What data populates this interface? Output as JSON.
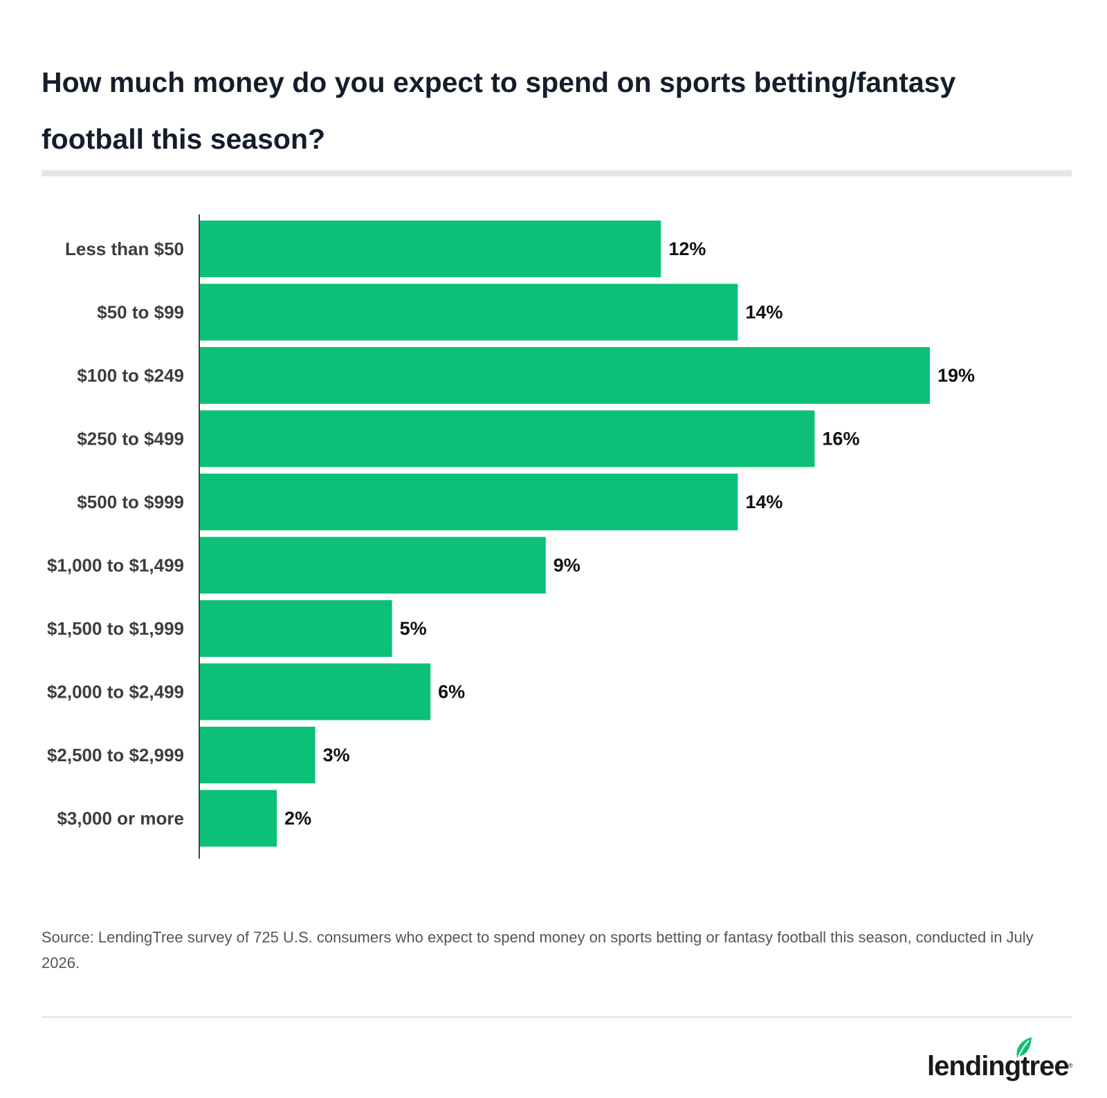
{
  "title": "How much money do you expect to spend on sports betting/fantasy football this season?",
  "source": "Source: LendingTree survey of 725 U.S. consumers who expect to spend money on sports betting or fantasy football this season, conducted in July 2026.",
  "logo": {
    "text": "lendingtree",
    "trademark": "®",
    "icon": "leaf-icon"
  },
  "colors": {
    "bar": "#0cc177",
    "axis": "#444444",
    "title": "#141d2b"
  },
  "chart_data": {
    "type": "bar",
    "orientation": "horizontal",
    "title": "How much money do you expect to spend on sports betting/fantasy football this season?",
    "xlabel": "",
    "ylabel": "",
    "xlim": [
      0,
      19
    ],
    "grid": false,
    "categories": [
      "Less than $50",
      "$50 to $99",
      "$100 to $249",
      "$250 to $499",
      "$500 to $999",
      "$1,000 to $1,499",
      "$1,500 to $1,999",
      "$2,000 to $2,499",
      "$2,500 to $2,999",
      "$3,000 or more"
    ],
    "values": [
      12,
      14,
      19,
      16,
      14,
      9,
      5,
      6,
      3,
      2
    ],
    "value_labels": [
      "12%",
      "14%",
      "19%",
      "16%",
      "14%",
      "9%",
      "5%",
      "6%",
      "3%",
      "2%"
    ],
    "unit": "%"
  }
}
